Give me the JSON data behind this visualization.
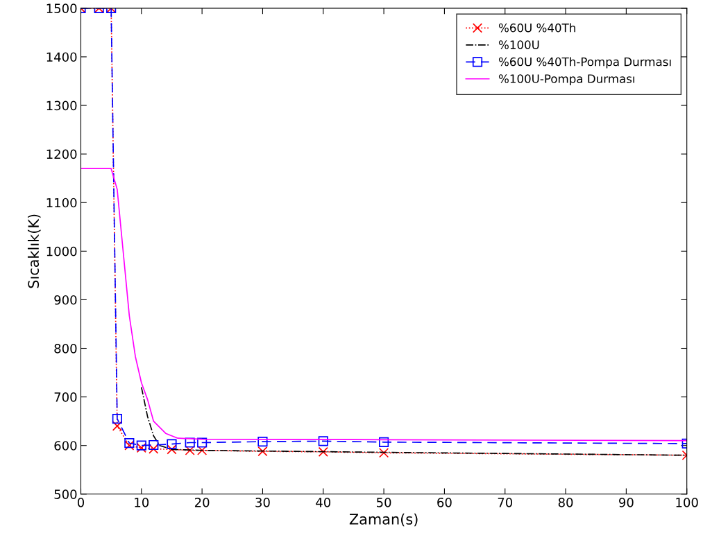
{
  "chart_data": {
    "type": "line",
    "xlabel": "Zaman(s)",
    "ylabel": "Sıcaklık(K)",
    "xlim": [
      0,
      100
    ],
    "ylim": [
      500,
      1500
    ],
    "xticks": [
      0,
      10,
      20,
      30,
      40,
      50,
      60,
      70,
      80,
      90,
      100
    ],
    "yticks": [
      500,
      600,
      700,
      800,
      900,
      1000,
      1100,
      1200,
      1300,
      1400,
      1500
    ],
    "grid": false,
    "legend": "top right",
    "series": [
      {
        "name": "%60U %40Th",
        "color": "#ff0000",
        "line_style": "dotted",
        "marker": "cross",
        "x": [
          0,
          3,
          5,
          6,
          8,
          10,
          12,
          15,
          18,
          20,
          30,
          40,
          50,
          100
        ],
        "values": [
          1500,
          1500,
          1500,
          640,
          600,
          595,
          593,
          592,
          590,
          590,
          588,
          587,
          585,
          580
        ]
      },
      {
        "name": "%100U",
        "color": "#000000",
        "line_style": "dashdot",
        "marker": "none",
        "x": [
          10,
          11,
          12,
          13,
          15,
          20,
          50,
          100
        ],
        "values": [
          720,
          660,
          620,
          600,
          592,
          590,
          586,
          580
        ]
      },
      {
        "name": "%60U %40Th-Pompa Durması",
        "color": "#0000ff",
        "line_style": "dashed",
        "marker": "square",
        "x": [
          0,
          3,
          5,
          6,
          8,
          10,
          12,
          15,
          18,
          20,
          30,
          40,
          50,
          100
        ],
        "values": [
          1500,
          1500,
          1500,
          655,
          605,
          600,
          601,
          603,
          606,
          606,
          608,
          609,
          607,
          604
        ]
      },
      {
        "name": "%100U-Pompa Durması",
        "color": "#ff00ff",
        "line_style": "solid",
        "marker": "none",
        "x": [
          0,
          5,
          6,
          7,
          8,
          9,
          10,
          11,
          12,
          14,
          16,
          20,
          50,
          100
        ],
        "values": [
          1170,
          1170,
          1127,
          997,
          867,
          783,
          729,
          695,
          650,
          625,
          615,
          613,
          612,
          610
        ]
      }
    ]
  }
}
